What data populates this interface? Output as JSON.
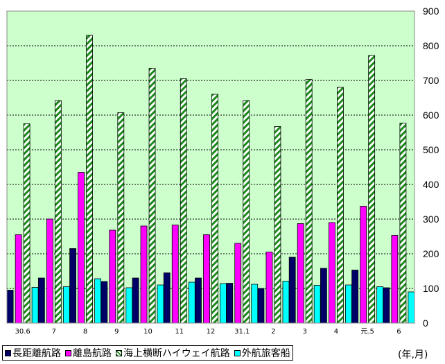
{
  "chart_data": {
    "type": "bar",
    "categories": [
      "30.6",
      "7",
      "8",
      "9",
      "10",
      "11",
      "12",
      "31.1",
      "2",
      "3",
      "4",
      "元.5",
      "6"
    ],
    "series": [
      {
        "name": "長距離航路",
        "color": "#000066",
        "values": [
          95,
          130,
          215,
          120,
          130,
          145,
          130,
          115,
          100,
          190,
          158,
          153,
          102
        ]
      },
      {
        "name": "離島航路",
        "color": "#ff00ff",
        "values": [
          255,
          300,
          435,
          268,
          280,
          283,
          255,
          230,
          205,
          287,
          290,
          337,
          253
        ]
      },
      {
        "name": "海上横断ハイウェイ航路",
        "color": "#ffffff",
        "pattern": "green-diagonal",
        "values": [
          575,
          642,
          830,
          607,
          735,
          705,
          660,
          642,
          567,
          703,
          680,
          772,
          577
        ]
      },
      {
        "name": "外航旅客船",
        "color": "#00ffff",
        "values": [
          103,
          105,
          128,
          102,
          110,
          118,
          114,
          112,
          121,
          109,
          110,
          105,
          90
        ]
      }
    ],
    "ylim": [
      0,
      900
    ],
    "yticks": [
      0,
      100,
      200,
      300,
      400,
      500,
      600,
      700,
      800,
      900
    ],
    "grid": true,
    "plot_background": "#ccffcc",
    "unit_label": "(年,月)",
    "legend_position": "bottom"
  }
}
